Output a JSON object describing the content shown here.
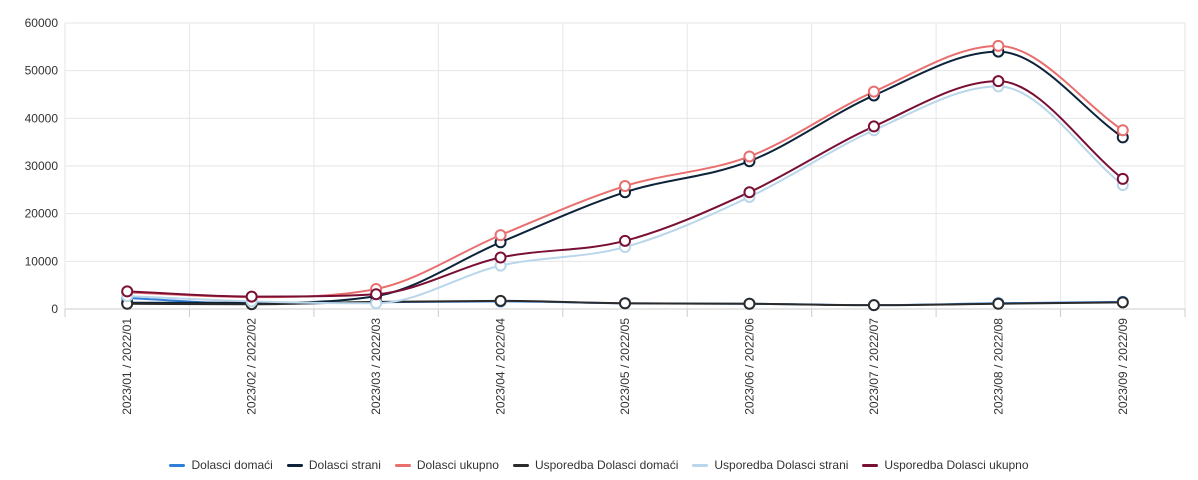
{
  "chart_data": {
    "type": "line",
    "title": "",
    "xlabel": "",
    "ylabel": "",
    "categories": [
      "2023/01 / 2022/01",
      "2023/02 / 2022/02",
      "2023/03 / 2022/03",
      "2023/04 / 2022/04",
      "2023/05 / 2022/05",
      "2023/06 / 2022/06",
      "2023/07 / 2022/07",
      "2023/08 / 2022/08",
      "2023/09 / 2022/09"
    ],
    "ylim": [
      0,
      60000
    ],
    "yticks": [
      0,
      10000,
      20000,
      30000,
      40000,
      50000,
      60000
    ],
    "grid": true,
    "legend_position": "bottom",
    "series": [
      {
        "name": "Dolasci domaći",
        "color": "#2f7ed8",
        "values": [
          2300,
          1100,
          1400,
          1600,
          1200,
          1100,
          800,
          1200,
          1500
        ]
      },
      {
        "name": "Dolasci strani",
        "color": "#0d233a",
        "values": [
          1300,
          1300,
          2700,
          14000,
          24500,
          31000,
          44800,
          54000,
          36000
        ]
      },
      {
        "name": "Dolasci ukupno",
        "color": "#e96f6f",
        "values": [
          3500,
          2500,
          4200,
          15500,
          25800,
          32000,
          45600,
          55200,
          37500
        ]
      },
      {
        "name": "Usporedba Dolasci domaći",
        "color": "#2b2b2b",
        "values": [
          1100,
          1000,
          1500,
          1700,
          1200,
          1100,
          800,
          1100,
          1400
        ]
      },
      {
        "name": "Usporedba Dolasci strani",
        "color": "#b9d6ea",
        "values": [
          2700,
          1600,
          1200,
          9100,
          13000,
          23500,
          37500,
          46700,
          26000
        ]
      },
      {
        "name": "Usporedba Dolasci ukupno",
        "color": "#7a0f35",
        "values": [
          3700,
          2600,
          3100,
          10800,
          14300,
          24500,
          38300,
          47800,
          27300
        ]
      }
    ]
  }
}
